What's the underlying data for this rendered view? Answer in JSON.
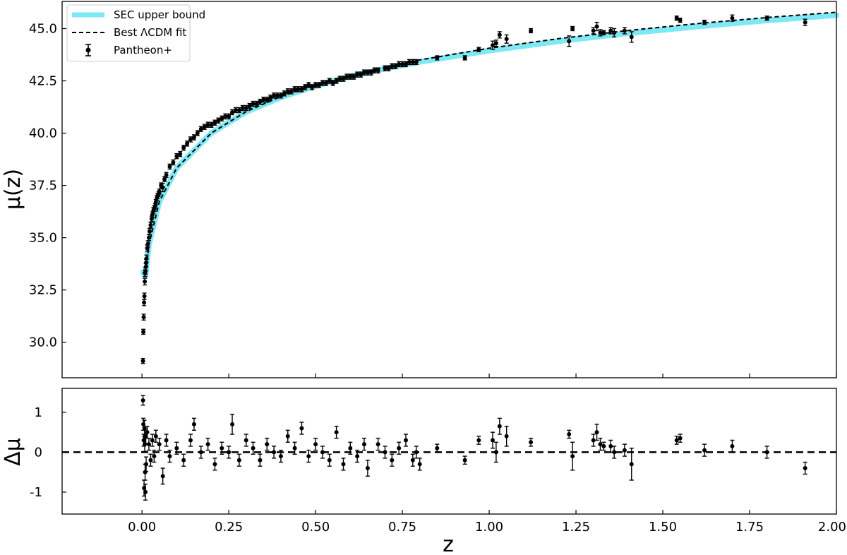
{
  "chart_data": [
    {
      "type": "scatter",
      "panel": "top",
      "xlabel": "",
      "ylabel": "μ(z)",
      "xlim": [
        -0.23,
        2.0
      ],
      "ylim": [
        28.3,
        46.3
      ],
      "x_ticks": [
        0.0,
        0.25,
        0.5,
        0.75,
        1.0,
        1.25,
        1.5,
        1.75,
        2.0
      ],
      "y_ticks": [
        30.0,
        32.5,
        35.0,
        37.5,
        40.0,
        42.5,
        45.0
      ],
      "y_tick_labels": [
        "30.0",
        "32.5",
        "35.0",
        "37.5",
        "40.0",
        "42.5",
        "45.0"
      ],
      "grid": false,
      "legend": {
        "position": "top-left",
        "entries": [
          "SEC upper bound",
          "Best ΛCDM fit",
          "Pantheon+"
        ]
      },
      "series": [
        {
          "name": "SEC upper bound",
          "kind": "band",
          "color": "#7ee8f5",
          "x": [
            0.003,
            0.01,
            0.02,
            0.05,
            0.1,
            0.2,
            0.3,
            0.4,
            0.5,
            0.6,
            0.7,
            0.8,
            1.0,
            1.2,
            1.4,
            1.6,
            1.8,
            2.0
          ],
          "y": [
            33.35,
            33.15,
            34.67,
            36.72,
            38.33,
            40.01,
            41.01,
            41.71,
            42.26,
            42.71,
            43.09,
            43.41,
            43.95,
            44.4,
            44.78,
            45.1,
            45.39,
            45.64
          ]
        },
        {
          "name": "Best ΛCDM fit",
          "kind": "dashed-line",
          "color": "#000000",
          "x": [
            0.003,
            0.01,
            0.02,
            0.05,
            0.1,
            0.2,
            0.3,
            0.4,
            0.5,
            0.6,
            0.7,
            0.8,
            1.0,
            1.2,
            1.4,
            1.6,
            1.8,
            2.0
          ],
          "y": [
            33.35,
            33.15,
            34.67,
            36.72,
            38.33,
            40.01,
            41.03,
            41.75,
            42.31,
            42.77,
            43.16,
            43.5,
            44.06,
            44.52,
            44.91,
            45.24,
            45.53,
            45.78
          ]
        },
        {
          "name": "Pantheon+",
          "kind": "errorbar-points",
          "color": "#000000",
          "x": [
            0.003,
            0.004,
            0.005,
            0.006,
            0.007,
            0.008,
            0.009,
            0.01,
            0.011,
            0.012,
            0.013,
            0.015,
            0.017,
            0.02,
            0.022,
            0.025,
            0.028,
            0.03,
            0.033,
            0.035,
            0.038,
            0.04,
            0.043,
            0.045,
            0.048,
            0.05,
            0.055,
            0.06,
            0.065,
            0.07,
            0.08,
            0.09,
            0.1,
            0.11,
            0.12,
            0.13,
            0.14,
            0.15,
            0.16,
            0.17,
            0.18,
            0.19,
            0.2,
            0.21,
            0.22,
            0.23,
            0.24,
            0.25,
            0.26,
            0.27,
            0.28,
            0.29,
            0.3,
            0.31,
            0.32,
            0.33,
            0.34,
            0.35,
            0.36,
            0.37,
            0.38,
            0.39,
            0.4,
            0.41,
            0.42,
            0.43,
            0.44,
            0.45,
            0.46,
            0.47,
            0.48,
            0.49,
            0.5,
            0.51,
            0.52,
            0.53,
            0.54,
            0.55,
            0.56,
            0.57,
            0.58,
            0.59,
            0.6,
            0.61,
            0.62,
            0.63,
            0.64,
            0.65,
            0.66,
            0.67,
            0.68,
            0.7,
            0.71,
            0.72,
            0.73,
            0.74,
            0.75,
            0.76,
            0.77,
            0.78,
            0.79,
            0.85,
            0.93,
            0.97,
            1.01,
            1.02,
            1.03,
            1.05,
            1.12,
            1.23,
            1.24,
            1.3,
            1.31,
            1.32,
            1.33,
            1.35,
            1.36,
            1.39,
            1.41,
            1.54,
            1.55,
            1.62,
            1.7,
            1.8,
            1.91
          ],
          "y": [
            29.1,
            30.5,
            31.2,
            31.9,
            32.2,
            32.9,
            33.3,
            33.4,
            33.6,
            33.8,
            34.0,
            34.5,
            34.7,
            35.0,
            35.3,
            35.6,
            35.9,
            36.1,
            36.3,
            36.4,
            36.5,
            36.7,
            36.9,
            37.0,
            37.1,
            37.2,
            37.5,
            37.4,
            37.8,
            38.0,
            38.4,
            38.6,
            38.9,
            39.0,
            39.3,
            39.5,
            39.7,
            39.8,
            40.0,
            40.2,
            40.3,
            40.4,
            40.4,
            40.5,
            40.6,
            40.7,
            40.8,
            40.8,
            41.0,
            41.1,
            41.1,
            41.2,
            41.2,
            41.3,
            41.4,
            41.4,
            41.5,
            41.6,
            41.6,
            41.7,
            41.8,
            41.8,
            41.8,
            41.9,
            42.0,
            42.0,
            42.1,
            42.1,
            42.1,
            42.2,
            42.3,
            42.2,
            42.3,
            42.3,
            42.4,
            42.4,
            42.5,
            42.4,
            42.5,
            42.6,
            42.6,
            42.7,
            42.7,
            42.7,
            42.8,
            42.8,
            42.9,
            42.9,
            42.9,
            43.0,
            43.0,
            43.1,
            43.1,
            43.2,
            43.2,
            43.3,
            43.3,
            43.3,
            43.4,
            43.4,
            43.4,
            43.6,
            43.6,
            44.0,
            44.2,
            44.3,
            44.7,
            44.5,
            44.9,
            44.4,
            45.0,
            44.9,
            45.1,
            44.8,
            44.8,
            44.9,
            44.8,
            44.9,
            44.6,
            45.5,
            45.4,
            45.3,
            45.5,
            45.5,
            45.3
          ],
          "err": [
            0.12,
            0.12,
            0.14,
            0.15,
            0.15,
            0.16,
            0.16,
            0.16,
            0.17,
            0.17,
            0.17,
            0.15,
            0.15,
            0.14,
            0.14,
            0.13,
            0.13,
            0.13,
            0.13,
            0.13,
            0.13,
            0.12,
            0.12,
            0.12,
            0.12,
            0.12,
            0.12,
            0.2,
            0.12,
            0.12,
            0.12,
            0.12,
            0.12,
            0.12,
            0.12,
            0.12,
            0.12,
            0.12,
            0.12,
            0.12,
            0.12,
            0.12,
            0.12,
            0.12,
            0.12,
            0.12,
            0.12,
            0.12,
            0.12,
            0.12,
            0.12,
            0.12,
            0.12,
            0.12,
            0.12,
            0.12,
            0.12,
            0.12,
            0.12,
            0.12,
            0.12,
            0.12,
            0.12,
            0.12,
            0.12,
            0.12,
            0.12,
            0.12,
            0.12,
            0.12,
            0.12,
            0.12,
            0.12,
            0.12,
            0.12,
            0.12,
            0.12,
            0.12,
            0.12,
            0.12,
            0.12,
            0.12,
            0.12,
            0.12,
            0.12,
            0.12,
            0.12,
            0.12,
            0.12,
            0.12,
            0.12,
            0.12,
            0.12,
            0.12,
            0.12,
            0.12,
            0.12,
            0.12,
            0.12,
            0.12,
            0.12,
            0.1,
            0.1,
            0.1,
            0.2,
            0.15,
            0.15,
            0.2,
            0.1,
            0.25,
            0.1,
            0.15,
            0.2,
            0.15,
            0.1,
            0.15,
            0.2,
            0.15,
            0.25,
            0.1,
            0.1,
            0.1,
            0.15,
            0.1,
            0.15
          ]
        }
      ]
    },
    {
      "type": "scatter",
      "panel": "bottom",
      "xlabel": "z",
      "ylabel": "Δμ",
      "xlim": [
        -0.23,
        2.0
      ],
      "ylim": [
        -1.55,
        1.6
      ],
      "x_ticks": [
        0.0,
        0.25,
        0.5,
        0.75,
        1.0,
        1.25,
        1.5,
        1.75,
        2.0
      ],
      "x_tick_labels": [
        "0.00",
        "0.25",
        "0.50",
        "0.75",
        "1.00",
        "1.25",
        "1.50",
        "1.75",
        "2.00"
      ],
      "y_ticks": [
        -1,
        0,
        1
      ],
      "y_tick_labels": [
        "-1",
        "0",
        "1"
      ],
      "grid": false,
      "reference_line": {
        "y": 0,
        "style": "dashed",
        "color": "#000000"
      },
      "series": [
        {
          "name": "Pantheon+",
          "kind": "errorbar-points",
          "color": "#000000",
          "x": [
            0.003,
            0.004,
            0.005,
            0.006,
            0.007,
            0.008,
            0.009,
            0.01,
            0.011,
            0.012,
            0.015,
            0.02,
            0.025,
            0.03,
            0.035,
            0.04,
            0.05,
            0.06,
            0.07,
            0.08,
            0.1,
            0.12,
            0.14,
            0.15,
            0.17,
            0.19,
            0.21,
            0.23,
            0.25,
            0.26,
            0.28,
            0.3,
            0.32,
            0.34,
            0.36,
            0.38,
            0.4,
            0.42,
            0.44,
            0.46,
            0.48,
            0.5,
            0.52,
            0.54,
            0.56,
            0.58,
            0.6,
            0.62,
            0.64,
            0.65,
            0.68,
            0.7,
            0.72,
            0.74,
            0.76,
            0.78,
            0.79,
            0.8,
            0.85,
            0.93,
            0.97,
            1.01,
            1.02,
            1.03,
            1.05,
            1.12,
            1.23,
            1.24,
            1.3,
            1.31,
            1.32,
            1.33,
            1.35,
            1.36,
            1.39,
            1.41,
            1.54,
            1.55,
            1.62,
            1.7,
            1.8,
            1.91
          ],
          "y": [
            1.3,
            0.7,
            0.3,
            -0.9,
            0.6,
            0.2,
            -0.5,
            -1.0,
            0.4,
            -0.3,
            0.5,
            0.2,
            -0.2,
            0.3,
            -0.1,
            0.4,
            0.2,
            -0.6,
            0.3,
            -0.1,
            0.1,
            -0.2,
            0.3,
            0.7,
            0.0,
            0.2,
            -0.3,
            0.1,
            0.0,
            0.7,
            -0.2,
            0.3,
            0.1,
            -0.2,
            0.2,
            0.0,
            -0.1,
            0.4,
            0.1,
            0.6,
            -0.1,
            0.2,
            0.0,
            -0.2,
            0.5,
            -0.3,
            0.1,
            -0.1,
            0.2,
            -0.4,
            0.2,
            0.0,
            -0.2,
            0.1,
            0.3,
            -0.2,
            0.0,
            -0.3,
            0.1,
            -0.2,
            0.3,
            0.3,
            0.0,
            0.65,
            0.4,
            0.25,
            0.45,
            -0.1,
            0.3,
            0.5,
            0.2,
            0.15,
            0.15,
            0.0,
            0.05,
            -0.3,
            0.3,
            0.35,
            0.05,
            0.15,
            0.0,
            -0.4
          ],
          "err": [
            0.12,
            0.15,
            0.15,
            0.2,
            0.2,
            0.18,
            0.2,
            0.2,
            0.18,
            0.18,
            0.15,
            0.15,
            0.15,
            0.15,
            0.15,
            0.15,
            0.15,
            0.2,
            0.15,
            0.15,
            0.15,
            0.15,
            0.15,
            0.15,
            0.15,
            0.15,
            0.15,
            0.15,
            0.15,
            0.25,
            0.15,
            0.15,
            0.15,
            0.15,
            0.15,
            0.15,
            0.15,
            0.15,
            0.15,
            0.15,
            0.15,
            0.15,
            0.15,
            0.15,
            0.15,
            0.15,
            0.15,
            0.15,
            0.15,
            0.2,
            0.15,
            0.15,
            0.15,
            0.15,
            0.15,
            0.15,
            0.15,
            0.15,
            0.1,
            0.1,
            0.1,
            0.2,
            0.25,
            0.2,
            0.25,
            0.1,
            0.1,
            0.35,
            0.15,
            0.2,
            0.15,
            0.1,
            0.15,
            0.15,
            0.15,
            0.4,
            0.1,
            0.1,
            0.15,
            0.15,
            0.15,
            0.15
          ]
        }
      ]
    }
  ]
}
